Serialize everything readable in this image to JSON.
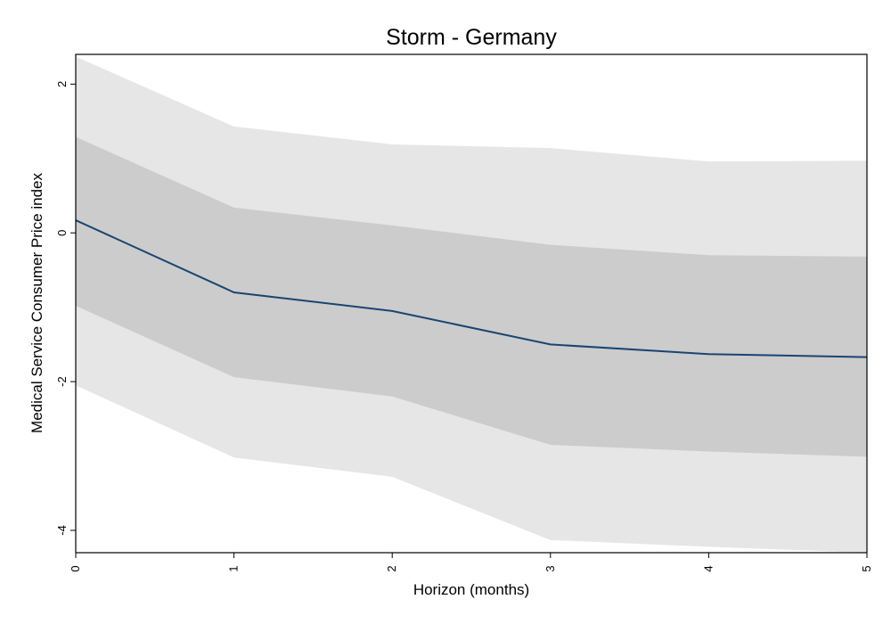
{
  "chart_data": {
    "type": "area",
    "title": "Storm - Germany",
    "xlabel": "Horizon (months)",
    "ylabel": "Medical Service Consumer Price index",
    "x": [
      0,
      1,
      2,
      3,
      4,
      5
    ],
    "xlim": [
      0,
      5
    ],
    "ylim": [
      -4.3,
      2.4
    ],
    "xticks": [
      0,
      1,
      2,
      3,
      4,
      5
    ],
    "yticks": [
      -4,
      -2,
      0,
      2
    ],
    "grid": false,
    "legend": "none",
    "series": [
      {
        "role": "outer-band",
        "lower": [
          -2.05,
          -3.02,
          -3.28,
          -4.13,
          -4.22,
          -4.3
        ],
        "upper": [
          2.37,
          1.43,
          1.19,
          1.14,
          0.96,
          0.97
        ],
        "color": "#e6e6e6"
      },
      {
        "role": "inner-band",
        "lower": [
          -0.98,
          -1.94,
          -2.2,
          -2.85,
          -2.94,
          -3.01
        ],
        "upper": [
          1.29,
          0.34,
          0.1,
          -0.16,
          -0.3,
          -0.32
        ],
        "color": "#cccccc"
      },
      {
        "role": "point-estimate",
        "values": [
          0.17,
          -0.8,
          -1.05,
          -1.5,
          -1.63,
          -1.67
        ],
        "color": "#1a4571"
      }
    ]
  }
}
